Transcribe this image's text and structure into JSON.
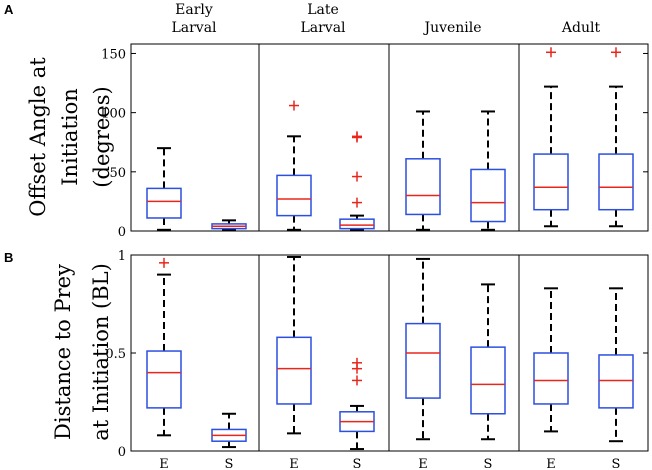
{
  "chart_data": [
    {
      "panel": "A",
      "type": "boxplot",
      "ylabel_lines": [
        "Offset Angle at",
        "Initiation",
        "(degrees)"
      ],
      "ylim": [
        0,
        158
      ],
      "yticks": [
        0,
        50,
        100,
        150
      ],
      "groups": [
        {
          "name_lines": [
            "Early",
            "Larval"
          ],
          "boxes": [
            {
              "category": "E",
              "whisker_low": 1,
              "q1": 11,
              "median": 25,
              "q3": 36,
              "whisker_high": 70,
              "outliers": []
            },
            {
              "category": "S",
              "whisker_low": 1,
              "q1": 2,
              "median": 4,
              "q3": 6,
              "whisker_high": 9,
              "outliers": []
            }
          ]
        },
        {
          "name_lines": [
            "Late",
            "Larval"
          ],
          "boxes": [
            {
              "category": "E",
              "whisker_low": 1,
              "q1": 13,
              "median": 27,
              "q3": 47,
              "whisker_high": 80,
              "outliers": [
                106
              ]
            },
            {
              "category": "S",
              "whisker_low": 1,
              "q1": 2,
              "median": 5,
              "q3": 10,
              "whisker_high": 13,
              "outliers": [
                24,
                46,
                79,
                80
              ]
            }
          ]
        },
        {
          "name_lines": [
            "Juvenile"
          ],
          "boxes": [
            {
              "category": "E",
              "whisker_low": 1,
              "q1": 14,
              "median": 30,
              "q3": 61,
              "whisker_high": 101,
              "outliers": []
            },
            {
              "category": "S",
              "whisker_low": 1,
              "q1": 8,
              "median": 24,
              "q3": 52,
              "whisker_high": 101,
              "outliers": []
            }
          ]
        },
        {
          "name_lines": [
            "Adult"
          ],
          "boxes": [
            {
              "category": "E",
              "whisker_low": 4,
              "q1": 18,
              "median": 37,
              "q3": 65,
              "whisker_high": 122,
              "outliers": [
                151
              ]
            },
            {
              "category": "S",
              "whisker_low": 4,
              "q1": 18,
              "median": 37,
              "q3": 65,
              "whisker_high": 122,
              "outliers": [
                151
              ]
            }
          ]
        }
      ]
    },
    {
      "panel": "B",
      "type": "boxplot",
      "ylabel_lines": [
        "Distance to Prey",
        "at Initiation (BL)"
      ],
      "ylim": [
        0,
        1
      ],
      "yticks": [
        0,
        0.5,
        1
      ],
      "ytick_labels": [
        "0",
        "0.5",
        "1"
      ],
      "groups": [
        {
          "boxes": [
            {
              "category": "E",
              "whisker_low": 0.08,
              "q1": 0.22,
              "median": 0.4,
              "q3": 0.51,
              "whisker_high": 0.9,
              "outliers": [
                0.96
              ]
            },
            {
              "category": "S",
              "whisker_low": 0.02,
              "q1": 0.05,
              "median": 0.08,
              "q3": 0.11,
              "whisker_high": 0.19,
              "outliers": []
            }
          ]
        },
        {
          "boxes": [
            {
              "category": "E",
              "whisker_low": 0.09,
              "q1": 0.24,
              "median": 0.42,
              "q3": 0.58,
              "whisker_high": 0.99,
              "outliers": []
            },
            {
              "category": "S",
              "whisker_low": 0.01,
              "q1": 0.1,
              "median": 0.15,
              "q3": 0.2,
              "whisker_high": 0.23,
              "outliers": [
                0.36,
                0.42,
                0.45
              ]
            }
          ]
        },
        {
          "boxes": [
            {
              "category": "E",
              "whisker_low": 0.06,
              "q1": 0.27,
              "median": 0.5,
              "q3": 0.65,
              "whisker_high": 0.98,
              "outliers": []
            },
            {
              "category": "S",
              "whisker_low": 0.06,
              "q1": 0.19,
              "median": 0.34,
              "q3": 0.53,
              "whisker_high": 0.85,
              "outliers": []
            }
          ]
        },
        {
          "boxes": [
            {
              "category": "E",
              "whisker_low": 0.1,
              "q1": 0.24,
              "median": 0.36,
              "q3": 0.5,
              "whisker_high": 0.83,
              "outliers": []
            },
            {
              "category": "S",
              "whisker_low": 0.05,
              "q1": 0.22,
              "median": 0.36,
              "q3": 0.49,
              "whisker_high": 0.83,
              "outliers": []
            }
          ]
        }
      ]
    }
  ],
  "colors": {
    "box": "#2b4fe0",
    "median": "#e8261c",
    "outlier": "#e8261c",
    "whisker": "#000000",
    "axis": "#000000"
  }
}
